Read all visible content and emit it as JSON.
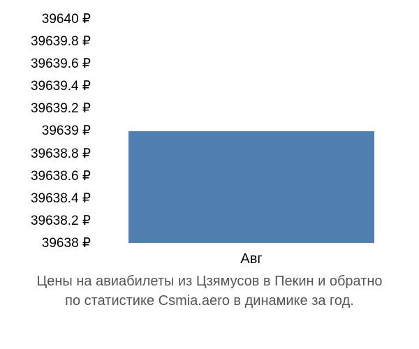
{
  "chart": {
    "type": "bar",
    "y_ticks": [
      "39640 ₽",
      "39639.8 ₽",
      "39639.6 ₽",
      "39639.4 ₽",
      "39639.2 ₽",
      "39639 ₽",
      "39638.8 ₽",
      "39638.6 ₽",
      "39638.4 ₽",
      "39638.2 ₽",
      "39638 ₽"
    ],
    "ylim": [
      39638,
      39640
    ],
    "ytick_step": 0.2,
    "x_labels": [
      "Авг"
    ],
    "values": [
      39639
    ],
    "bar_color": "#5080b0",
    "background_color": "#ffffff",
    "grid_color": "#dddddd",
    "text_color": "#000000",
    "caption_color": "#555555",
    "tick_fontsize": 19,
    "caption_fontsize": 20,
    "bar_left_pct": 8,
    "bar_width_pct": 84,
    "bar_height_pct": 50
  },
  "caption": {
    "line1": "Цены на авиабилеты из Цзямусов в Пекин и обратно",
    "line2": "по статистике Csmia.aero в динамике за год."
  }
}
